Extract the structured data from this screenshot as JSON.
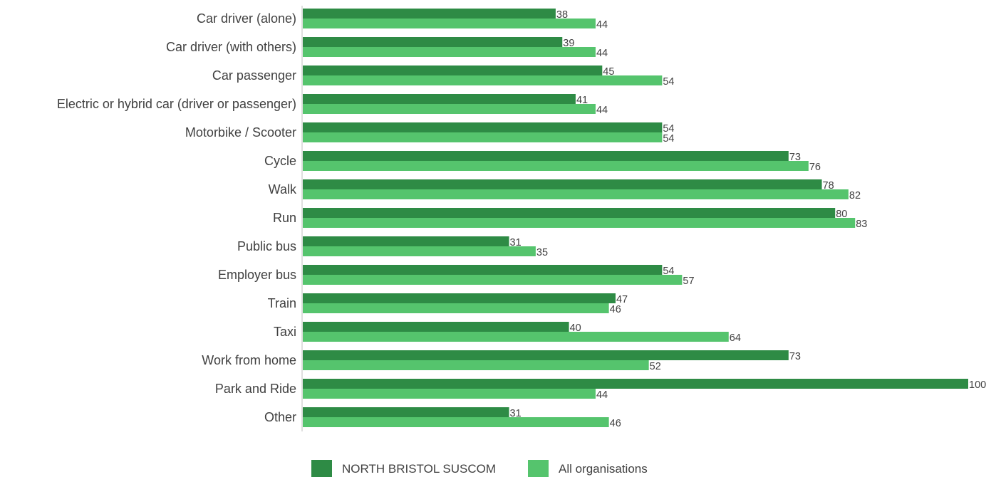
{
  "chart_data": {
    "type": "bar",
    "orientation": "horizontal",
    "categories": [
      "Car driver (alone)",
      "Car driver (with others)",
      "Car passenger",
      "Electric or hybrid car (driver or passenger)",
      "Motorbike / Scooter",
      "Cycle",
      "Walk",
      "Run",
      "Public bus",
      "Employer bus",
      "Train",
      "Taxi",
      "Work from home",
      "Park and Ride",
      "Other"
    ],
    "series": [
      {
        "name": "NORTH BRISTOL SUSCOM",
        "color": "#2e8b45",
        "values": [
          38,
          39,
          45,
          41,
          54,
          73,
          78,
          80,
          31,
          54,
          47,
          40,
          73,
          100,
          31
        ]
      },
      {
        "name": "All organisations",
        "color": "#55c46d",
        "values": [
          44,
          44,
          54,
          44,
          54,
          76,
          82,
          83,
          35,
          57,
          46,
          64,
          52,
          44,
          46
        ]
      }
    ],
    "xlim": [
      0,
      100
    ],
    "grid": false,
    "data_labels": true,
    "legend_position": "bottom"
  }
}
